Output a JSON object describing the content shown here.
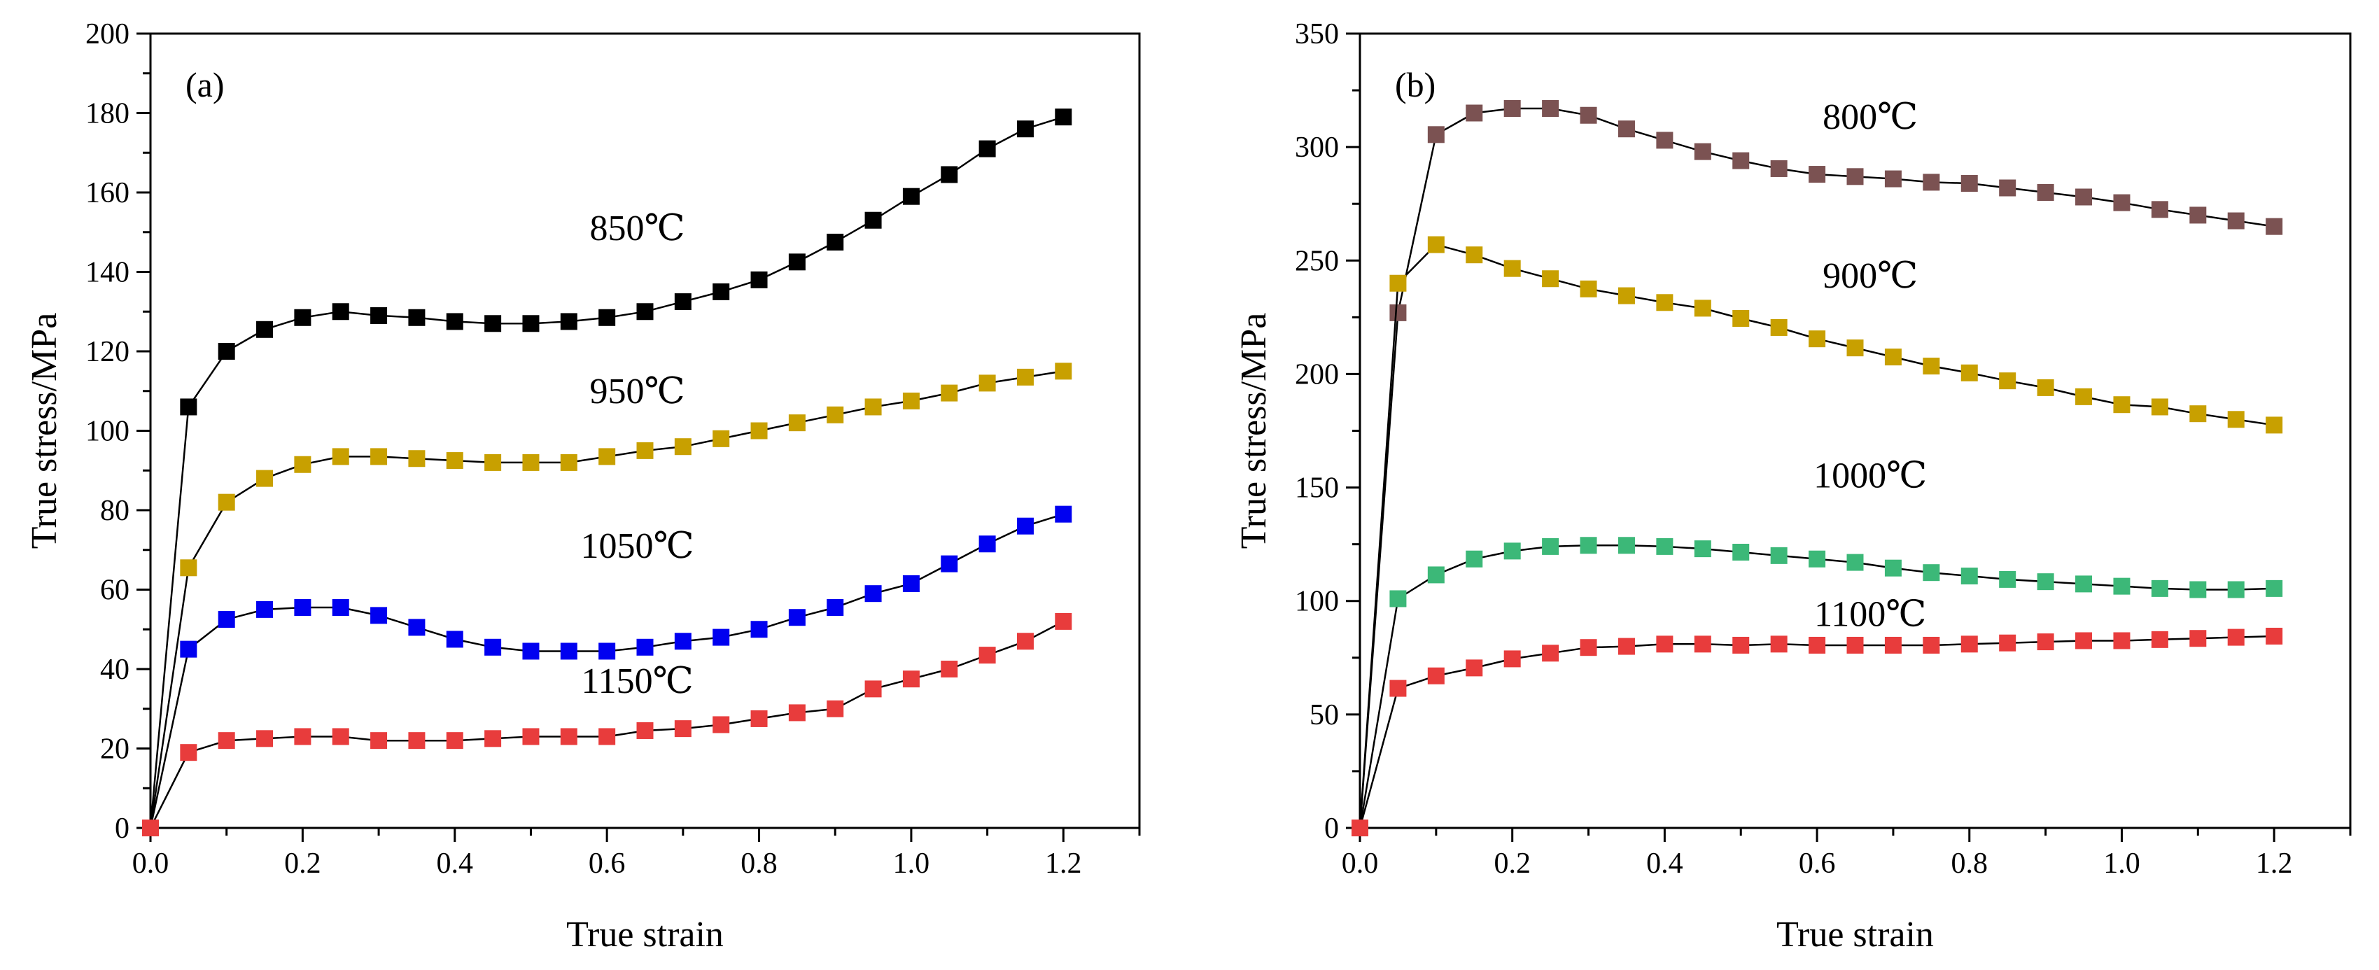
{
  "chart_data": [
    {
      "type": "line",
      "panel_label": "(a)",
      "xlabel": "True strain",
      "ylabel": "True stress/MPa",
      "xlim": [
        0,
        1.3
      ],
      "ylim": [
        0,
        200
      ],
      "xticks": [
        0.0,
        0.2,
        0.4,
        0.6,
        0.8,
        1.0,
        1.2
      ],
      "xtick_labels": [
        "0.0",
        "0.2",
        "0.4",
        "0.6",
        "0.8",
        "1.0",
        "1.2"
      ],
      "yticks": [
        0,
        20,
        40,
        60,
        80,
        100,
        120,
        140,
        160,
        180,
        200
      ],
      "ytick_labels": [
        "0",
        "20",
        "40",
        "60",
        "80",
        "100",
        "120",
        "140",
        "160",
        "180",
        "200"
      ],
      "grid": false,
      "x": [
        0,
        0.05,
        0.1,
        0.15,
        0.2,
        0.25,
        0.3,
        0.35,
        0.4,
        0.45,
        0.5,
        0.55,
        0.6,
        0.65,
        0.7,
        0.75,
        0.8,
        0.85,
        0.9,
        0.95,
        1.0,
        1.05,
        1.1,
        1.15,
        1.2
      ],
      "series": [
        {
          "name": "850℃",
          "color": "#000000",
          "label_at": [
            0.64,
            148
          ],
          "values": [
            0,
            106,
            120,
            125.5,
            128.5,
            130,
            129,
            128.5,
            127.5,
            127,
            127,
            127.5,
            128.5,
            130,
            132.5,
            135,
            138,
            142.5,
            147.5,
            153,
            159,
            164.5,
            171,
            176,
            179
          ]
        },
        {
          "name": "950℃",
          "color": "#C8A000",
          "label_at": [
            0.64,
            107
          ],
          "values": [
            0,
            65.5,
            82,
            88,
            91.5,
            93.5,
            93.5,
            93,
            92.5,
            92,
            92,
            92,
            93.5,
            95,
            96,
            98,
            100,
            102,
            104,
            106,
            107.5,
            109.5,
            112,
            113.5,
            115
          ]
        },
        {
          "name": "1050℃",
          "color": "#0000F0",
          "label_at": [
            0.64,
            68
          ],
          "values": [
            0,
            45,
            52.5,
            55,
            55.5,
            55.5,
            53.5,
            50.5,
            47.5,
            45.5,
            44.5,
            44.5,
            44.5,
            45.5,
            47,
            48,
            50,
            53,
            55.5,
            59,
            61.5,
            66.5,
            71.5,
            76,
            79
          ]
        },
        {
          "name": "1150℃",
          "color": "#E83C3C",
          "label_at": [
            0.64,
            34
          ],
          "values": [
            0,
            19,
            22,
            22.5,
            23,
            23,
            22,
            22,
            22,
            22.5,
            23,
            23,
            23,
            24.5,
            25,
            26,
            27.5,
            29,
            30,
            35,
            37.5,
            40,
            43.5,
            47,
            52
          ]
        }
      ]
    },
    {
      "type": "line",
      "panel_label": "(b)",
      "xlabel": "True strain",
      "ylabel": "True stress/MPa",
      "xlim": [
        0,
        1.3
      ],
      "ylim": [
        0,
        350
      ],
      "xticks": [
        0.0,
        0.2,
        0.4,
        0.6,
        0.8,
        1.0,
        1.2
      ],
      "xtick_labels": [
        "0.0",
        "0.2",
        "0.4",
        "0.6",
        "0.8",
        "1.0",
        "1.2"
      ],
      "yticks": [
        0,
        50,
        100,
        150,
        200,
        250,
        300,
        350
      ],
      "ytick_labels": [
        "0",
        "50",
        "100",
        "150",
        "200",
        "250",
        "300",
        "350"
      ],
      "grid": false,
      "x": [
        0,
        0.05,
        0.1,
        0.15,
        0.2,
        0.25,
        0.3,
        0.35,
        0.4,
        0.45,
        0.5,
        0.55,
        0.6,
        0.65,
        0.7,
        0.75,
        0.8,
        0.85,
        0.9,
        0.95,
        1.0,
        1.05,
        1.1,
        1.15,
        1.2
      ],
      "series": [
        {
          "name": "800℃",
          "color": "#7B5252",
          "label_at": [
            0.67,
            308
          ],
          "values": [
            0,
            227,
            305.5,
            315,
            317,
            317,
            314,
            308,
            303,
            298,
            294,
            290.5,
            288,
            287,
            286,
            284.5,
            284,
            282,
            280,
            278,
            275.5,
            272.5,
            270,
            267.5,
            265
          ]
        },
        {
          "name": "900℃",
          "color": "#C8A000",
          "label_at": [
            0.67,
            238
          ],
          "values": [
            0,
            240,
            257,
            252.5,
            246.5,
            242,
            237.5,
            234.5,
            231.5,
            229,
            224.5,
            220.5,
            215.5,
            211.5,
            207.5,
            203.5,
            200.5,
            197,
            194,
            190,
            186.5,
            185.5,
            182.5,
            180,
            177.5
          ]
        },
        {
          "name": "1000℃",
          "color": "#3CB878",
          "label_at": [
            0.67,
            150
          ],
          "values": [
            0,
            101,
            111.5,
            118.5,
            122,
            124,
            124.5,
            124.5,
            124,
            123,
            121.5,
            120,
            118.5,
            117,
            114.5,
            112.5,
            111,
            109.5,
            108.5,
            107.5,
            106.5,
            105.5,
            105,
            105,
            105.5
          ]
        },
        {
          "name": "1100℃",
          "color": "#E83C3C",
          "label_at": [
            0.67,
            89
          ],
          "values": [
            0,
            61.5,
            67,
            70.5,
            74.5,
            77,
            79.5,
            80,
            81,
            81,
            80.5,
            81,
            80.5,
            80.5,
            80.5,
            80.5,
            81,
            81.5,
            82,
            82.5,
            82.5,
            83,
            83.5,
            84,
            84.5
          ]
        }
      ]
    }
  ]
}
